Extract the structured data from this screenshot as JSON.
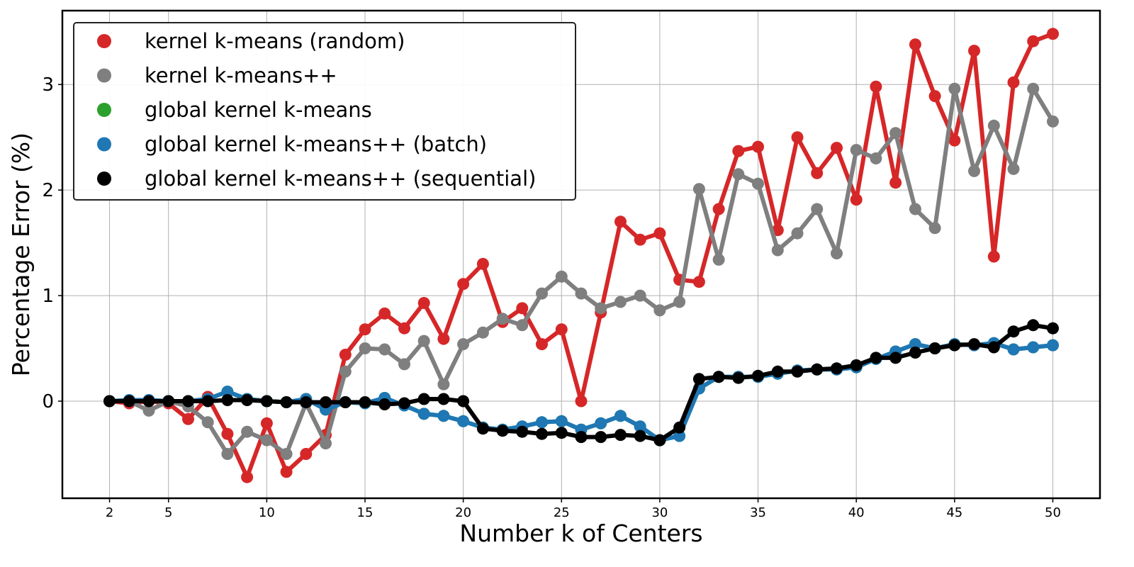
{
  "chart_data": {
    "type": "line",
    "xlabel": "Number k of Centers",
    "ylabel": "Percentage Error (%)",
    "xlim": [
      -0.4,
      52.4
    ],
    "ylim": [
      -0.92,
      3.7
    ],
    "xticks": [
      2,
      5,
      10,
      15,
      20,
      25,
      30,
      35,
      40,
      45,
      50
    ],
    "yticks": [
      0,
      1,
      2,
      3
    ],
    "grid": true,
    "legend_position": "upper-left",
    "x": [
      2,
      3,
      4,
      5,
      6,
      7,
      8,
      9,
      10,
      11,
      12,
      13,
      14,
      15,
      16,
      17,
      18,
      19,
      20,
      21,
      22,
      23,
      24,
      25,
      26,
      27,
      28,
      29,
      30,
      31,
      32,
      33,
      34,
      35,
      36,
      37,
      38,
      39,
      40,
      41,
      42,
      43,
      44,
      45,
      46,
      47,
      48,
      49,
      50
    ],
    "series": [
      {
        "name": "kernel k-means (random)",
        "color": "#d62728",
        "values": [
          0.0,
          -0.02,
          0.0,
          -0.02,
          -0.17,
          0.04,
          -0.31,
          -0.72,
          -0.21,
          -0.67,
          -0.5,
          -0.32,
          0.44,
          0.68,
          0.83,
          0.69,
          0.93,
          0.59,
          1.11,
          1.3,
          0.75,
          0.88,
          0.54,
          0.68,
          0.0,
          0.84,
          1.7,
          1.53,
          1.59,
          1.15,
          1.13,
          1.82,
          2.37,
          2.41,
          1.62,
          2.5,
          2.16,
          2.4,
          1.91,
          2.98,
          2.07,
          3.38,
          2.89,
          2.47,
          3.32,
          1.37,
          3.02,
          3.41,
          3.48
        ]
      },
      {
        "name": "kernel k-means++",
        "color": "#7f7f7f",
        "values": [
          0.0,
          0.0,
          -0.09,
          0.0,
          -0.05,
          -0.2,
          -0.5,
          -0.29,
          -0.37,
          -0.5,
          -0.02,
          -0.4,
          0.28,
          0.5,
          0.49,
          0.35,
          0.57,
          0.16,
          0.54,
          0.65,
          0.78,
          0.72,
          1.02,
          1.18,
          1.02,
          0.88,
          0.94,
          1.0,
          0.86,
          0.94,
          2.01,
          1.34,
          2.15,
          2.06,
          1.43,
          1.59,
          1.82,
          1.4,
          2.38,
          2.3,
          2.54,
          1.82,
          1.64,
          2.96,
          2.18,
          2.61,
          2.2,
          2.96,
          2.65
        ]
      },
      {
        "name": "global kernel k-means",
        "color": "#2ca02c",
        "values": [
          0.0,
          0.01,
          0.01,
          0.0,
          0.0,
          0.02,
          0.09,
          0.02,
          0.0,
          -0.01,
          0.02,
          -0.08,
          -0.01,
          -0.02,
          0.03,
          -0.04,
          -0.12,
          -0.14,
          -0.19,
          -0.25,
          -0.27,
          -0.24,
          -0.2,
          -0.19,
          -0.27,
          -0.21,
          -0.14,
          -0.24,
          -0.37,
          -0.33,
          0.12,
          0.23,
          0.23,
          0.23,
          0.26,
          0.29,
          0.3,
          0.3,
          0.32,
          0.4,
          0.47,
          0.54,
          0.5,
          0.54,
          0.53,
          0.55,
          0.49,
          0.51,
          0.53
        ]
      },
      {
        "name": "global kernel k-means++ (batch)",
        "color": "#1f77b4",
        "values": [
          0.0,
          0.01,
          0.01,
          0.0,
          0.0,
          0.02,
          0.09,
          0.02,
          0.0,
          -0.01,
          0.02,
          -0.08,
          -0.01,
          -0.02,
          0.03,
          -0.04,
          -0.12,
          -0.14,
          -0.19,
          -0.25,
          -0.27,
          -0.24,
          -0.2,
          -0.19,
          -0.27,
          -0.21,
          -0.14,
          -0.24,
          -0.37,
          -0.33,
          0.12,
          0.23,
          0.23,
          0.23,
          0.26,
          0.29,
          0.3,
          0.3,
          0.32,
          0.4,
          0.47,
          0.54,
          0.5,
          0.54,
          0.53,
          0.55,
          0.49,
          0.51,
          0.53
        ]
      },
      {
        "name": "global kernel k-means++ (sequential)",
        "color": "#000000",
        "values": [
          0.0,
          0.0,
          0.0,
          0.0,
          0.0,
          0.0,
          0.01,
          0.01,
          0.0,
          -0.01,
          -0.01,
          -0.01,
          -0.01,
          -0.01,
          -0.03,
          -0.02,
          0.02,
          0.02,
          0.0,
          -0.26,
          -0.28,
          -0.29,
          -0.31,
          -0.3,
          -0.34,
          -0.34,
          -0.32,
          -0.33,
          -0.37,
          -0.25,
          0.21,
          0.23,
          0.22,
          0.24,
          0.28,
          0.28,
          0.3,
          0.31,
          0.34,
          0.41,
          0.41,
          0.46,
          0.5,
          0.53,
          0.54,
          0.51,
          0.66,
          0.72,
          0.69
        ]
      }
    ]
  }
}
